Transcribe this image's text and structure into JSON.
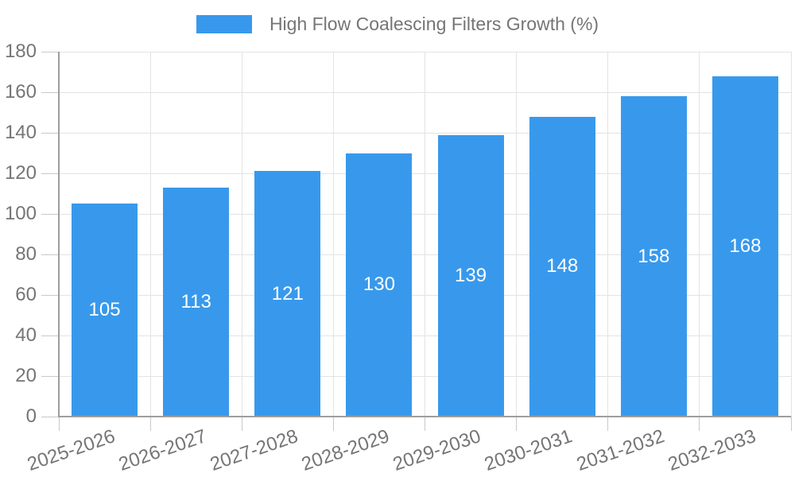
{
  "chart_data": {
    "type": "bar",
    "categories": [
      "2025-2026",
      "2026-2027",
      "2027-2028",
      "2028-2029",
      "2029-2030",
      "2030-2031",
      "2031-2032",
      "2032-2033"
    ],
    "series": [
      {
        "name": "High Flow Coalescing Filters Growth (%)",
        "values": [
          105,
          113,
          121,
          130,
          139,
          148,
          158,
          168
        ]
      }
    ],
    "ylim": [
      0,
      180
    ],
    "ytick_step": 20,
    "ytick_labels": [
      "0",
      "20",
      "40",
      "60",
      "80",
      "100",
      "120",
      "140",
      "160",
      "180"
    ],
    "grid": true,
    "legend_position": "top-center",
    "x_label_rotation_deg": -19,
    "styles": {
      "bar_color": "#3899EC",
      "value_label_color": "#FFFFFF",
      "axis_text_color": "#757575",
      "axis_line_color": "#9E9E9E",
      "gridline_color": "#E3E3E3",
      "tick_color": "#C9C9C9",
      "background": "#FFFFFF"
    }
  }
}
